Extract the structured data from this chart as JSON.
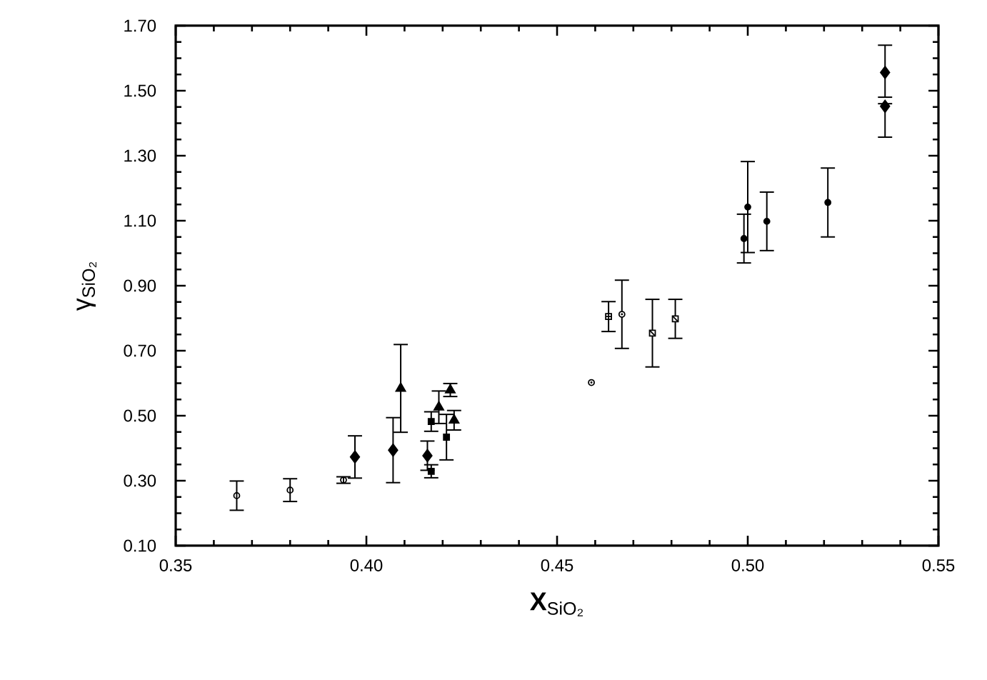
{
  "chart_data": {
    "type": "scatter",
    "xlabel": "**X**$_{SiO₂}$",
    "ylabel": "γ$_{SiO₂}$",
    "xlim": [
      0.35,
      0.55
    ],
    "xticks": [
      {
        "value": 0.35,
        "label": "0.35"
      },
      {
        "value": 0.4,
        "label": "0.40"
      },
      {
        "value": 0.45,
        "label": "0.45"
      },
      {
        "value": 0.5,
        "label": "0.50"
      },
      {
        "value": 0.55,
        "label": "0.55"
      }
    ],
    "ylim": [
      0.1,
      1.7
    ],
    "yticks": [
      {
        "value": 0.1,
        "label": "0.10"
      },
      {
        "value": 0.3,
        "label": "0.30"
      },
      {
        "value": 0.5,
        "label": "0.50"
      },
      {
        "value": 0.7,
        "label": "0.70"
      },
      {
        "value": 0.9,
        "label": "0.90"
      },
      {
        "value": 1.1,
        "label": "1.10"
      },
      {
        "value": 1.3,
        "label": "1.30"
      },
      {
        "value": 1.5,
        "label": "1.50"
      },
      {
        "value": 1.7,
        "label": "1.70"
      }
    ],
    "grid": false,
    "series": [
      {
        "marker": "circle-open",
        "color": "#000000",
        "x": [
          0.366,
          0.38,
          0.394
        ],
        "values": [
          0.254,
          0.271,
          0.302
        ],
        "errors": [
          0.045,
          0.035,
          0.01
        ]
      },
      {
        "marker": "diamond",
        "color": "#000000",
        "x": [
          0.397,
          0.407,
          0.416,
          0.536,
          0.536
        ],
        "values": [
          0.373,
          0.394,
          0.377,
          1.556,
          1.452
        ],
        "errors": [
          0.065,
          0.1,
          0.045,
          [
            1.48,
            1.64
          ],
          [
            1.357,
            1.46
          ]
        ]
      },
      {
        "marker": "triangle",
        "color": "#000000",
        "x": [
          0.409,
          0.422,
          0.419,
          0.423
        ],
        "values": [
          0.584,
          0.579,
          0.526,
          0.486
        ],
        "errors": [
          0.135,
          0.02,
          0.05,
          0.03
        ]
      },
      {
        "marker": "square",
        "color": "#000000",
        "x": [
          0.417,
          0.421,
          0.417
        ],
        "values": [
          0.482,
          0.434,
          0.329
        ],
        "errors": [
          0.03,
          0.07,
          0.02
        ]
      },
      {
        "marker": "circle",
        "color": "#000000",
        "x": [
          0.5,
          0.499,
          0.505,
          0.521
        ],
        "values": [
          1.142,
          1.045,
          1.098,
          1.156
        ],
        "errors": [
          0.14,
          0.075,
          0.09,
          0.106
        ]
      },
      {
        "marker": "square-grid",
        "color": "#000000",
        "x": [
          0.4635
        ],
        "values": [
          0.805
        ],
        "errors": [
          0.046
        ]
      },
      {
        "marker": "circle-dot",
        "color": "#000000",
        "x": [
          0.467,
          0.459
        ],
        "values": [
          0.812,
          0.602
        ],
        "errors": [
          0.105,
          null
        ]
      },
      {
        "marker": "square-slash",
        "color": "#000000",
        "x": [
          0.475,
          0.481
        ],
        "values": [
          0.754,
          0.798
        ],
        "errors": [
          0.104,
          0.06
        ]
      }
    ]
  }
}
